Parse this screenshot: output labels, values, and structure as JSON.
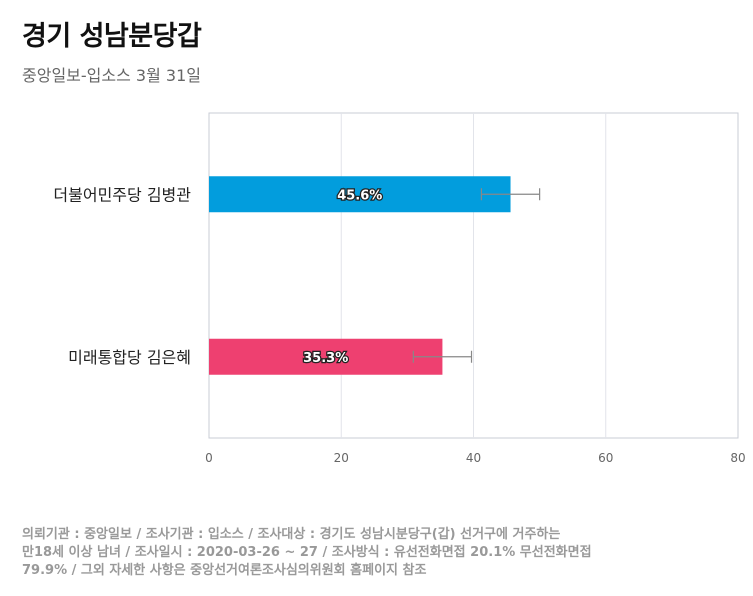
{
  "header": {
    "title": "경기 성남분당갑",
    "subtitle": "중앙일보-입소스 3월 31일"
  },
  "footnote": {
    "lines": [
      "의뢰기관 : 중앙일보 / 조사기관 : 입소스 / 조사대상 : 경기도 성남시분당구(갑) 선거구에 거주하는",
      "만18세 이상 남녀 / 조사일시 : 2020-03-26 ~ 27 / 조사방식 : 유선전화면접 20.1% 무선전화면접",
      "79.9% / 그외 자세한 사항은 중앙선거여론조사심의위원회 홈페이지 참조"
    ]
  },
  "chart_data": {
    "type": "bar",
    "orientation": "horizontal",
    "categories": [
      "더불어민주당 김병관",
      "미래통합당 김은혜"
    ],
    "values": [
      45.6,
      35.3
    ],
    "value_labels": [
      "45.6%",
      "35.3%"
    ],
    "error_bars": [
      [
        41.2,
        50.0
      ],
      [
        30.9,
        39.7
      ]
    ],
    "colors": [
      "#029ddd",
      "#ee4070"
    ],
    "xlim": [
      0,
      80
    ],
    "xticks": [
      0,
      20,
      40,
      60,
      80
    ],
    "grid": true
  }
}
